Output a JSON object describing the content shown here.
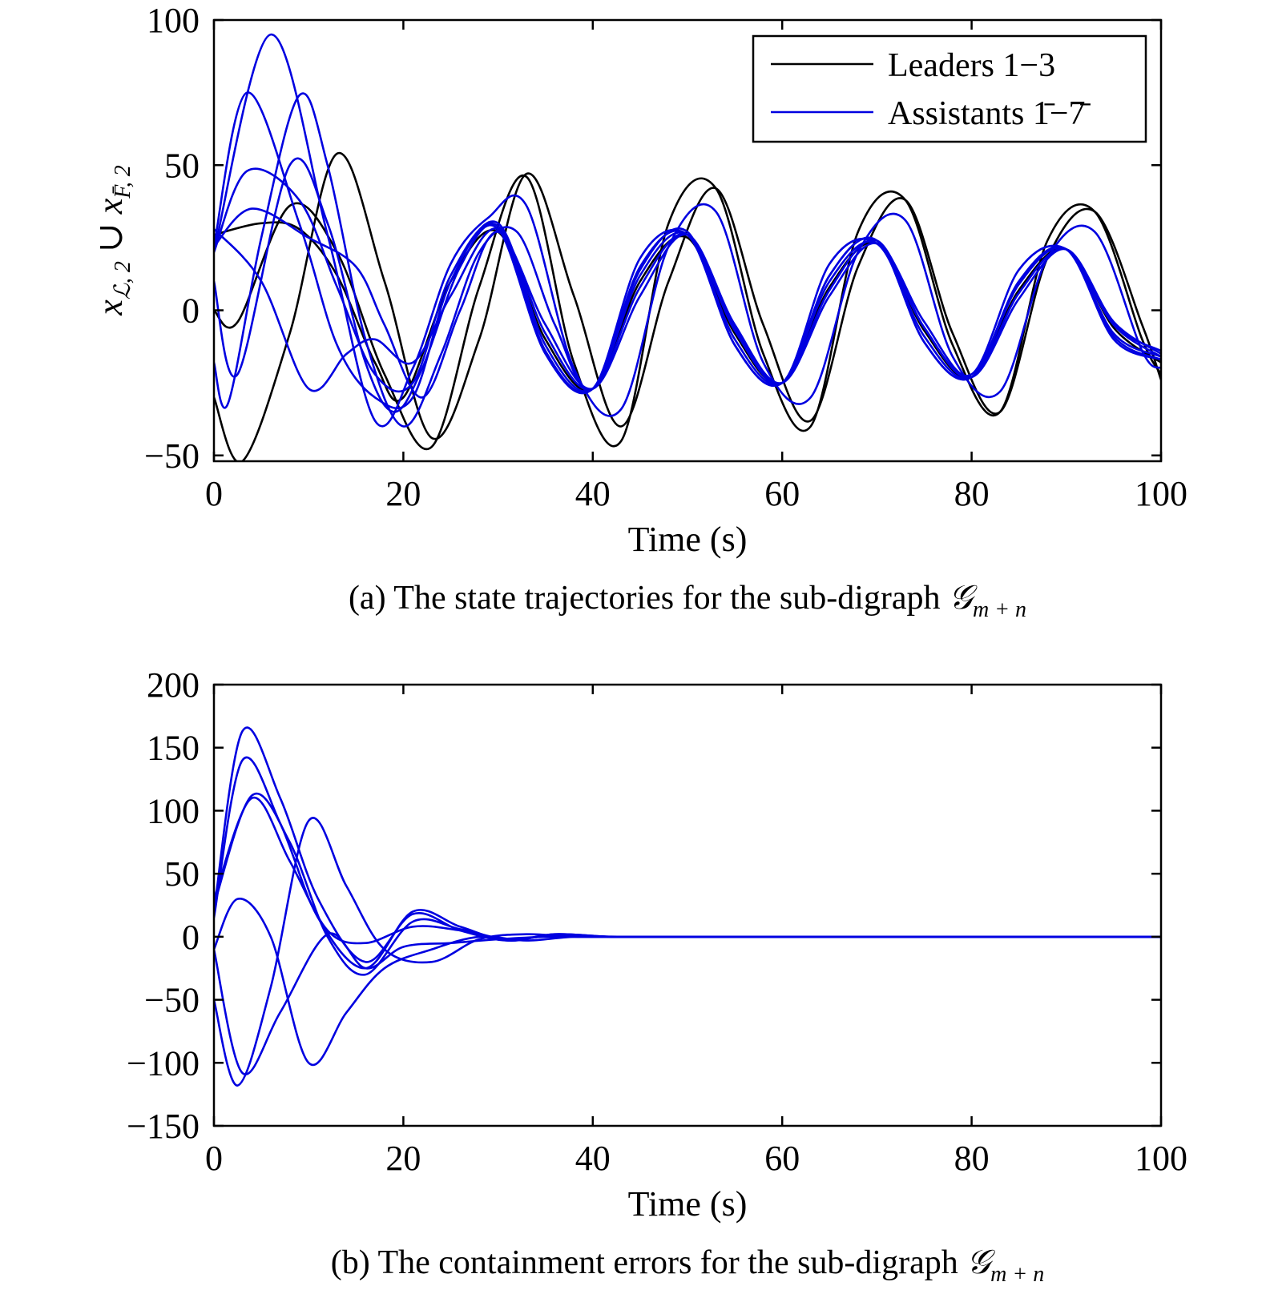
{
  "chart_data": [
    {
      "type": "line",
      "panel": "a",
      "caption_prefix": "(a) The state trajectories for the sub-digraph ",
      "caption_symbol": "𝒢",
      "caption_subscript": "m + n",
      "xlabel": "Time (s)",
      "ylabel": {
        "x": "x",
        "sub1": "ℒ, 2",
        "union": " ∪ ",
        "x2": "x",
        "sub2": "F̄, 2"
      },
      "xlim": [
        0,
        100
      ],
      "ylim": [
        -52,
        100
      ],
      "x_ticks": [
        0,
        20,
        40,
        60,
        80,
        100
      ],
      "x_tick_labels": [
        "0",
        "20",
        "40",
        "60",
        "80",
        "100"
      ],
      "y_ticks": [
        -50,
        0,
        50,
        100
      ],
      "y_tick_labels": [
        "−50",
        "0",
        "50",
        "100"
      ],
      "legend_position": "top-right",
      "legend": [
        {
          "label": "Leaders 1−3",
          "color": "#000000"
        },
        {
          "label": "Assistants 1̄−7̄",
          "color": "#0000e0"
        }
      ],
      "series": [
        {
          "group": "Leaders 1−3",
          "color": "#000000",
          "x": [
            0,
            2.5,
            8,
            13,
            18,
            23,
            28,
            33,
            38,
            43,
            48,
            53,
            58,
            63,
            68,
            73,
            78,
            83,
            88,
            93,
            98,
            100
          ],
          "y": [
            0,
            -4,
            36,
            20,
            -22,
            -47,
            8,
            46,
            -18,
            -45,
            30,
            42,
            -15,
            -40,
            27,
            38,
            -12,
            -35,
            24,
            34,
            -10,
            -22
          ]
        },
        {
          "group": "Leaders 1−3",
          "color": "#000000",
          "x": [
            0,
            3,
            8,
            13,
            18,
            23,
            28,
            33,
            38,
            43,
            48,
            53,
            58,
            63,
            68,
            73,
            78,
            83,
            88,
            93,
            98,
            100
          ],
          "y": [
            -30,
            -52,
            -8,
            54,
            10,
            -44,
            -10,
            47,
            5,
            -40,
            10,
            42,
            -5,
            -38,
            15,
            38,
            -8,
            -35,
            18,
            34,
            -5,
            -24
          ]
        },
        {
          "group": "Leaders 1−3",
          "color": "#000000",
          "x": [
            0,
            5,
            9,
            13,
            17,
            20,
            25,
            30,
            35,
            40,
            45,
            50,
            55,
            60,
            65,
            70,
            75,
            80,
            85,
            90,
            95,
            100
          ],
          "y": [
            26,
            30,
            28,
            12,
            -18,
            -30,
            10,
            27,
            -10,
            -27,
            10,
            25,
            -8,
            -25,
            8,
            23,
            -7,
            -23,
            7,
            21,
            -6,
            -18
          ]
        },
        {
          "group": "Assistants 1̄−7̄",
          "color": "#0000e0",
          "x": [
            0,
            6,
            12,
            17,
            21,
            25,
            29,
            33,
            38,
            43,
            48,
            53,
            58,
            63,
            68,
            73,
            78,
            83,
            88,
            93,
            98,
            100
          ],
          "y": [
            20,
            95,
            26,
            -38,
            -20,
            16,
            32,
            36,
            -20,
            -34,
            22,
            34,
            -18,
            -30,
            20,
            31,
            -16,
            -28,
            18,
            27,
            -14,
            -20
          ]
        },
        {
          "group": "Assistants 1̄−7̄",
          "color": "#0000e0",
          "x": [
            0,
            3.5,
            9,
            13,
            17,
            21,
            25,
            30,
            35,
            40,
            45,
            50,
            55,
            60,
            65,
            70,
            75,
            80,
            85,
            90,
            95,
            100
          ],
          "y": [
            22,
            75,
            30,
            -12,
            -30,
            -30,
            10,
            30,
            -12,
            -27,
            12,
            26,
            -10,
            -25,
            10,
            23,
            -9,
            -23,
            9,
            21,
            -8,
            -16
          ]
        },
        {
          "group": "Assistants 1̄−7̄",
          "color": "#0000e0",
          "x": [
            0,
            3.5,
            9,
            13,
            17,
            21,
            25,
            30,
            35,
            40,
            45,
            50,
            55,
            60,
            65,
            70,
            75,
            80,
            85,
            90,
            95,
            100
          ],
          "y": [
            20,
            48,
            38,
            8,
            -22,
            -25,
            12,
            29,
            -14,
            -27,
            14,
            27,
            -12,
            -25,
            12,
            24,
            -11,
            -23,
            10,
            21,
            -9,
            -17
          ]
        },
        {
          "group": "Assistants 1̄−7̄",
          "color": "#0000e0",
          "x": [
            0,
            2.5,
            8,
            12,
            16,
            19,
            22,
            26,
            30,
            35,
            40,
            45,
            50,
            55,
            60,
            65,
            70,
            75,
            80,
            85,
            90,
            95,
            100
          ],
          "y": [
            10,
            -22,
            50,
            30,
            -18,
            -35,
            -20,
            15,
            28,
            -15,
            -27,
            15,
            26,
            -12,
            -25,
            12,
            24,
            -11,
            -23,
            10,
            21,
            -10,
            -17
          ]
        },
        {
          "group": "Assistants 1̄−7̄",
          "color": "#0000e0",
          "x": [
            0,
            1.5,
            5,
            9,
            12,
            16,
            20,
            24,
            28,
            32,
            36,
            40,
            45,
            50,
            55,
            60,
            65,
            70,
            75,
            80,
            85,
            90,
            95,
            100
          ],
          "y": [
            -18,
            -32,
            25,
            74,
            50,
            -10,
            -40,
            -15,
            20,
            27,
            -5,
            -27,
            18,
            26,
            -6,
            -25,
            16,
            23,
            -6,
            -22,
            14,
            21,
            -5,
            -14
          ]
        },
        {
          "group": "Assistants 1̄−7̄",
          "color": "#0000e0",
          "x": [
            0,
            4,
            10,
            15,
            18,
            22,
            26,
            30,
            35,
            40,
            45,
            50,
            55,
            60,
            65,
            70,
            75,
            80,
            85,
            90,
            95,
            100
          ],
          "y": [
            22,
            35,
            25,
            15,
            -5,
            -30,
            0,
            27,
            -5,
            -27,
            5,
            26,
            -5,
            -25,
            5,
            23,
            -4,
            -23,
            4,
            21,
            -4,
            -15
          ]
        },
        {
          "group": "Assistants 1̄−7̄",
          "color": "#0000e0",
          "x": [
            0,
            5,
            10,
            14,
            17,
            21,
            25,
            30,
            35,
            40,
            45,
            50,
            55,
            60,
            65,
            70,
            75,
            80,
            85,
            90,
            95,
            100
          ],
          "y": [
            28,
            10,
            -27,
            -15,
            -10,
            -18,
            5,
            28,
            -8,
            -27,
            8,
            26,
            -7,
            -25,
            7,
            24,
            -6,
            -23,
            6,
            21,
            -5,
            -16
          ]
        }
      ]
    },
    {
      "type": "line",
      "panel": "b",
      "caption_prefix": "(b) The containment errors for the sub-digraph ",
      "caption_symbol": "𝒢",
      "caption_subscript": "m + n",
      "xlabel": "Time (s)",
      "ylabel": "",
      "xlim": [
        0,
        100
      ],
      "ylim": [
        -150,
        200
      ],
      "x_ticks": [
        0,
        20,
        40,
        60,
        80,
        100
      ],
      "x_tick_labels": [
        "0",
        "20",
        "40",
        "60",
        "80",
        "100"
      ],
      "y_ticks": [
        -150,
        -100,
        -50,
        0,
        50,
        100,
        150,
        200
      ],
      "y_tick_labels": [
        "−150",
        "−100",
        "−50",
        "0",
        "50",
        "100",
        "150",
        "200"
      ],
      "series": [
        {
          "color": "#0000e0",
          "x": [
            0,
            3,
            7,
            11,
            16,
            21,
            26,
            31,
            36,
            42,
            50,
            100
          ],
          "y": [
            20,
            163,
            110,
            30,
            -20,
            18,
            5,
            -3,
            2,
            0,
            0,
            0
          ]
        },
        {
          "color": "#0000e0",
          "x": [
            0,
            3,
            7,
            11,
            16,
            21,
            26,
            31,
            36,
            42,
            50,
            100
          ],
          "y": [
            15,
            140,
            90,
            15,
            -25,
            20,
            8,
            -3,
            2,
            0,
            0,
            0
          ]
        },
        {
          "color": "#0000e0",
          "x": [
            0,
            4,
            8,
            12,
            16,
            21,
            26,
            31,
            36,
            42,
            50,
            100
          ],
          "y": [
            25,
            112,
            75,
            0,
            -30,
            12,
            6,
            -2,
            1,
            0,
            0,
            0
          ]
        },
        {
          "color": "#0000e0",
          "x": [
            0,
            4,
            8,
            12,
            16,
            21,
            26,
            31,
            36,
            42,
            50,
            100
          ],
          "y": [
            30,
            110,
            60,
            5,
            -5,
            8,
            5,
            -2,
            1,
            0,
            0,
            0
          ]
        },
        {
          "color": "#0000e0",
          "x": [
            0,
            2.5,
            6,
            10,
            14,
            18,
            23,
            28,
            33,
            38,
            44,
            50,
            100
          ],
          "y": [
            -10,
            30,
            0,
            -100,
            -60,
            -25,
            -10,
            0,
            -3,
            0,
            0,
            0,
            0
          ]
        },
        {
          "color": "#0000e0",
          "x": [
            0,
            2.5,
            6,
            10,
            14,
            18,
            23,
            28,
            33,
            38,
            44,
            50,
            100
          ],
          "y": [
            -50,
            -118,
            -40,
            92,
            40,
            -10,
            -20,
            -2,
            2,
            0,
            0,
            0,
            0
          ]
        },
        {
          "color": "#0000e0",
          "x": [
            0,
            3,
            7,
            12,
            16,
            20,
            25,
            30,
            35,
            40,
            46,
            100
          ],
          "y": [
            -10,
            -108,
            -60,
            2,
            -25,
            -8,
            -5,
            -2,
            0,
            0,
            0,
            0
          ]
        }
      ]
    }
  ]
}
